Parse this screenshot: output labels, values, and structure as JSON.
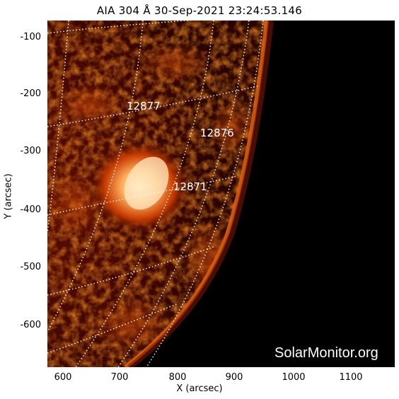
{
  "title": "AIA 304 Å 30-Sep-2021 23:24:53.146",
  "x_axis": {
    "label": "X (arcsec)",
    "ticks": [
      "600",
      "700",
      "800",
      "900",
      "1000",
      "1100"
    ]
  },
  "y_axis": {
    "label": "Y (arcsec)",
    "ticks": [
      "-100",
      "-200",
      "-300",
      "-400",
      "-500",
      "-600"
    ]
  },
  "active_regions": [
    {
      "label": "12877"
    },
    {
      "label": "12876"
    },
    {
      "label": "12871"
    }
  ],
  "credit": "SolarMonitor.org",
  "colors": {
    "background": "#000000",
    "sun_dark": "#3a0600",
    "sun_mid": "#a82a00",
    "sun_bright": "#ffd9a0",
    "grid": "#ffffff"
  }
}
